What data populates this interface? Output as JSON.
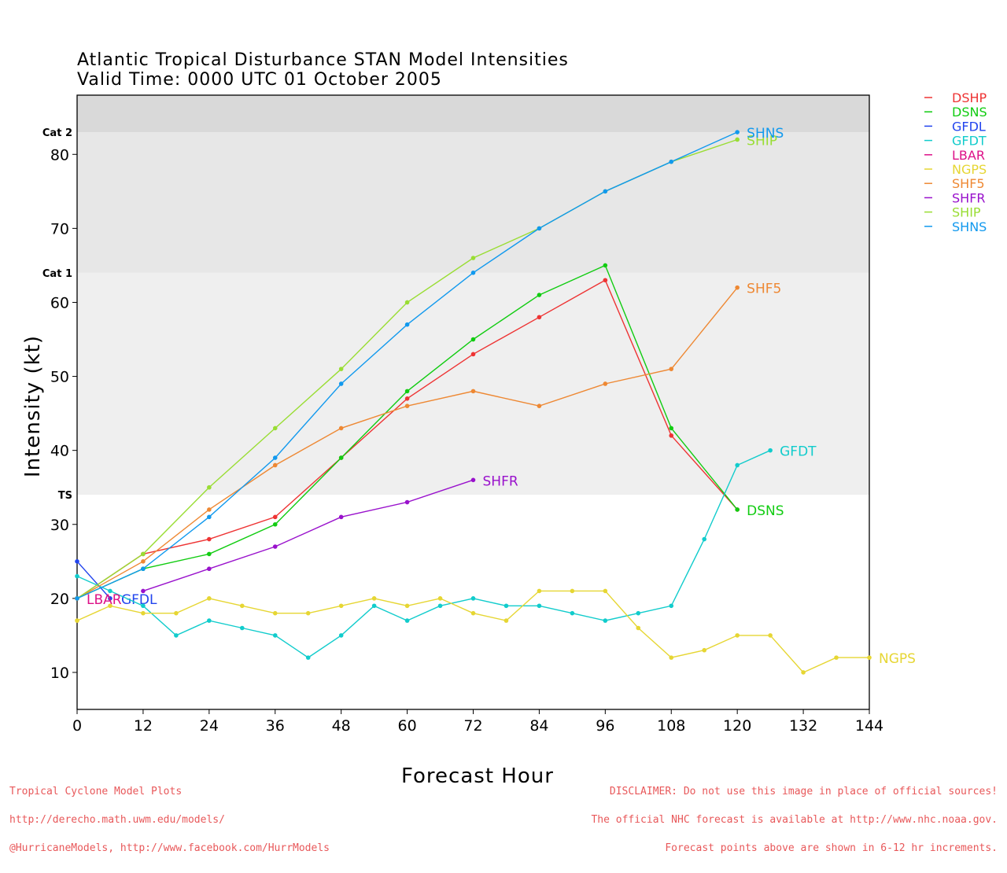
{
  "header": {
    "title_line1": "Atlantic Tropical Disturbance STAN Model Intensities",
    "title_line2": "Valid Time: 0000 UTC 01 October 2005"
  },
  "footer": {
    "left_line1": "Tropical Cyclone Model Plots",
    "left_line2": "http://derecho.math.uwm.edu/models/",
    "left_line3": "@HurricaneModels, http://www.facebook.com/HurrModels",
    "right_line1": "DISCLAIMER: Do not use this image in place of official sources!",
    "right_line2": "The official NHC forecast is available at http://www.nhc.noaa.gov.",
    "right_line3": "Forecast points above are shown in 6-12 hr increments."
  },
  "chart_data": {
    "type": "line",
    "title": "Atlantic Tropical Disturbance STAN Model Intensities",
    "subtitle": "Valid Time: 0000 UTC 01 October 2005",
    "xlabel": "Forecast Hour",
    "ylabel": "Intensity (kt)",
    "xlim": [
      0,
      144
    ],
    "ylim": [
      5,
      88
    ],
    "xticks": [
      0,
      12,
      24,
      36,
      48,
      60,
      72,
      84,
      96,
      108,
      120,
      132,
      144
    ],
    "yticks": [
      10,
      20,
      30,
      40,
      50,
      60,
      70,
      80
    ],
    "grid": false,
    "legend_position": "right",
    "bands": [
      {
        "label": "TS",
        "from": 34,
        "to": 64,
        "color": "#efefef"
      },
      {
        "label": "Cat 1",
        "from": 64,
        "to": 83,
        "color": "#e7e7e7"
      },
      {
        "label": "Cat 2",
        "from": 83,
        "to": 88,
        "color": "#d9d9d9"
      }
    ],
    "series": [
      {
        "name": "DSHP",
        "color": "#ee3333",
        "label_text": "",
        "x": [
          0,
          12,
          24,
          36,
          48,
          60,
          72,
          84,
          96,
          108,
          120
        ],
        "y": [
          20,
          26,
          28,
          31,
          39,
          47,
          53,
          58,
          63,
          42,
          32
        ]
      },
      {
        "name": "DSNS",
        "color": "#11cc11",
        "label_text": "DSNS",
        "x": [
          0,
          12,
          24,
          36,
          48,
          60,
          72,
          84,
          96,
          108,
          120
        ],
        "y": [
          20,
          24,
          26,
          30,
          39,
          48,
          55,
          61,
          65,
          43,
          32
        ]
      },
      {
        "name": "GFDL",
        "color": "#2244ee",
        "label_text": "GFDL",
        "x": [
          0,
          6
        ],
        "y": [
          25,
          20
        ]
      },
      {
        "name": "GFDT",
        "color": "#11cccc",
        "label_text": "GFDT",
        "x": [
          0,
          6,
          12,
          18,
          24,
          30,
          36,
          42,
          48,
          54,
          60,
          66,
          72,
          78,
          84,
          90,
          96,
          102,
          108,
          114,
          120,
          126
        ],
        "y": [
          23,
          21,
          19,
          15,
          17,
          16,
          15,
          12,
          15,
          19,
          17,
          19,
          20,
          19,
          19,
          18,
          17,
          18,
          19,
          28,
          38,
          40
        ]
      },
      {
        "name": "LBAR",
        "color": "#dd1188",
        "label_text": "LBAR",
        "x": [
          0
        ],
        "y": [
          20
        ]
      },
      {
        "name": "NGPS",
        "color": "#e6d633",
        "label_text": "NGPS",
        "x": [
          0,
          6,
          12,
          18,
          24,
          30,
          36,
          42,
          48,
          54,
          60,
          66,
          72,
          78,
          84,
          90,
          96,
          102,
          108,
          114,
          120,
          126,
          132,
          138,
          144
        ],
        "y": [
          17,
          19,
          18,
          18,
          20,
          19,
          18,
          18,
          19,
          20,
          19,
          20,
          18,
          17,
          21,
          21,
          21,
          16,
          12,
          13,
          15,
          15,
          10,
          12,
          12
        ]
      },
      {
        "name": "SHF5",
        "color": "#ee8833",
        "label_text": "SHF5",
        "x": [
          0,
          12,
          24,
          36,
          48,
          60,
          72,
          84,
          96,
          108,
          120
        ],
        "y": [
          20,
          25,
          32,
          38,
          43,
          46,
          48,
          46,
          49,
          51,
          62
        ]
      },
      {
        "name": "SHFR",
        "color": "#9911cc",
        "label_text": "SHFR",
        "x": [
          12,
          24,
          36,
          48,
          60,
          72
        ],
        "y": [
          21,
          24,
          27,
          31,
          33,
          36
        ]
      },
      {
        "name": "SHIP",
        "color": "#99dd33",
        "label_text": "SHIP",
        "x": [
          0,
          12,
          24,
          36,
          48,
          60,
          72,
          84,
          96,
          108,
          120
        ],
        "y": [
          20,
          26,
          35,
          43,
          51,
          60,
          66,
          70,
          75,
          79,
          82
        ]
      },
      {
        "name": "SHNS",
        "color": "#1199ee",
        "label_text": "SHNS",
        "x": [
          0,
          12,
          24,
          36,
          48,
          60,
          72,
          84,
          96,
          108,
          120
        ],
        "y": [
          20,
          24,
          31,
          39,
          49,
          57,
          64,
          70,
          75,
          79,
          83
        ]
      }
    ]
  }
}
